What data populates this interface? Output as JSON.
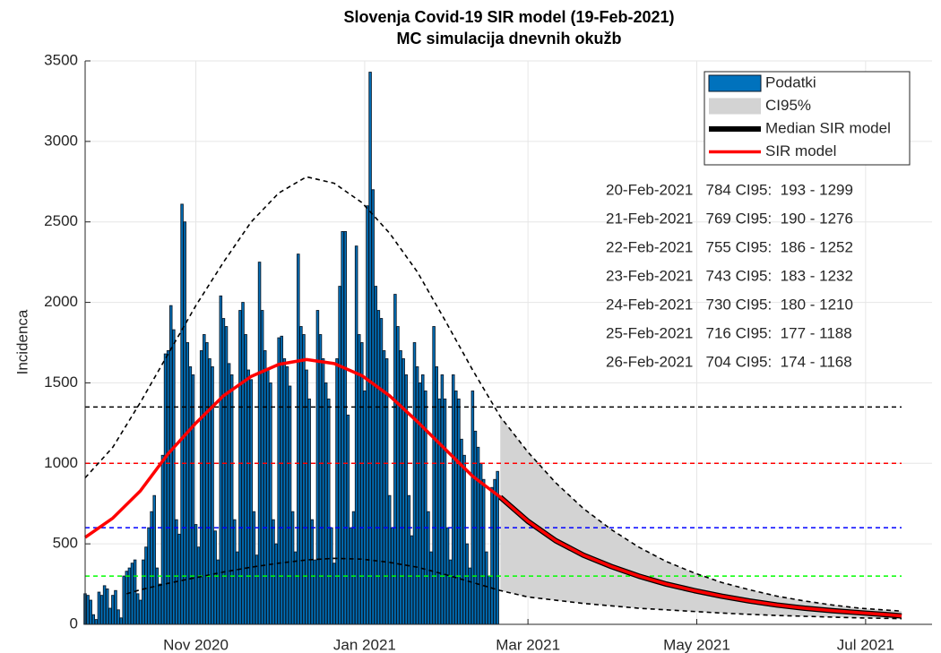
{
  "chart_data": {
    "type": "bar",
    "title": "Slovenja Covid-19 SIR model (19-Feb-2021)",
    "subtitle": "MC simulacija dnevnih okužb",
    "ylabel": "Incidenca",
    "xlim": [
      0,
      306
    ],
    "ylim": [
      0,
      3500
    ],
    "xticks": [
      {
        "value": 40,
        "label": "Nov 2020"
      },
      {
        "value": 101,
        "label": "Jan 2021"
      },
      {
        "value": 160,
        "label": "Mar 2021"
      },
      {
        "value": 221,
        "label": "May 2021"
      },
      {
        "value": 282,
        "label": "Jul 2021"
      }
    ],
    "yticks": [
      0,
      500,
      1000,
      1500,
      2000,
      2500,
      3000,
      3500
    ],
    "grid": true,
    "legend": "upper right",
    "series": [
      {
        "name": "Podatki",
        "kind": "bar",
        "color": "#0072bd",
        "values": [
          190,
          180,
          150,
          60,
          30,
          200,
          180,
          240,
          220,
          100,
          180,
          210,
          90,
          40,
          300,
          330,
          350,
          380,
          400,
          190,
          150,
          400,
          480,
          600,
          700,
          800,
          350,
          250,
          1050,
          1680,
          1700,
          1980,
          1830,
          650,
          560,
          2610,
          2500,
          1750,
          1600,
          1550,
          620,
          480,
          1700,
          1800,
          1750,
          1650,
          1600,
          580,
          400,
          2040,
          1900,
          1850,
          1620,
          1550,
          650,
          450,
          1950,
          2000,
          1800,
          1580,
          1520,
          700,
          430,
          2250,
          1950,
          1700,
          1580,
          1500,
          650,
          500,
          1780,
          1790,
          1650,
          1600,
          1480,
          700,
          450,
          2300,
          1850,
          1800,
          1580,
          1400,
          650,
          400,
          1950,
          1800,
          1650,
          1500,
          1400,
          600,
          380,
          1650,
          2100,
          2440,
          2440,
          1300,
          600,
          700,
          2350,
          1800,
          1750,
          1450,
          2600,
          3430,
          2700,
          2100,
          1950,
          1900,
          1700,
          1650,
          800,
          600,
          2050,
          1850,
          1700,
          1650,
          1550,
          800,
          550,
          1750,
          1600,
          1500,
          1550,
          1450,
          700,
          450,
          1850,
          1600,
          1400,
          1550,
          1400,
          600,
          400,
          1550,
          1450,
          1400,
          1150,
          1050,
          500,
          350,
          1450,
          1200,
          1100,
          1000,
          900,
          450,
          300,
          850,
          900,
          950
        ]
      },
      {
        "name": "CI95%",
        "kind": "band",
        "color": "#d3d3d3",
        "x": [
          150,
          160,
          170,
          180,
          190,
          200,
          210,
          220,
          230,
          240,
          250,
          260,
          270,
          280,
          290,
          295
        ],
        "upper": [
          1290,
          1070,
          880,
          720,
          590,
          480,
          390,
          320,
          260,
          215,
          175,
          145,
          120,
          100,
          88,
          82
        ],
        "lower": [
          210,
          170,
          150,
          130,
          115,
          100,
          90,
          80,
          70,
          62,
          55,
          50,
          45,
          40,
          37,
          35
        ]
      },
      {
        "name": "Median SIR model",
        "kind": "line",
        "color": "#000000",
        "width": 6,
        "x": [
          150,
          160,
          170,
          180,
          190,
          200,
          210,
          220,
          230,
          240,
          250,
          260,
          270,
          280,
          290,
          295
        ],
        "values": [
          790,
          640,
          520,
          430,
          360,
          300,
          250,
          210,
          175,
          145,
          120,
          100,
          85,
          72,
          60,
          52
        ]
      },
      {
        "name": "SIR model",
        "kind": "line",
        "color": "#ff0000",
        "width": 3.5,
        "x": [
          0,
          10,
          20,
          30,
          40,
          50,
          60,
          70,
          80,
          90,
          100,
          110,
          120,
          130,
          140,
          150,
          160,
          170,
          180,
          190,
          200,
          210,
          220,
          230,
          240,
          250,
          260,
          270,
          280,
          290,
          295
        ],
        "values": [
          540,
          660,
          830,
          1060,
          1250,
          1420,
          1540,
          1615,
          1645,
          1620,
          1545,
          1420,
          1260,
          1090,
          920,
          790,
          640,
          520,
          430,
          360,
          300,
          250,
          210,
          175,
          145,
          120,
          100,
          85,
          72,
          60,
          52
        ]
      }
    ],
    "dashed": [
      {
        "color": "#000000",
        "x": [
          0,
          10,
          20,
          30,
          40,
          50,
          60,
          70,
          80,
          90,
          100,
          110,
          120,
          130,
          140,
          150,
          160,
          170,
          180,
          190,
          200,
          210,
          220,
          230,
          240,
          250,
          260,
          270,
          280,
          290,
          295
        ],
        "values": [
          910,
          1100,
          1380,
          1680,
          1980,
          2250,
          2500,
          2680,
          2780,
          2740,
          2620,
          2430,
          2190,
          1890,
          1580,
          1290,
          1070,
          880,
          720,
          590,
          480,
          390,
          320,
          260,
          215,
          175,
          145,
          120,
          100,
          88,
          82
        ]
      },
      {
        "color": "#000000",
        "x": [
          15,
          20,
          30,
          40,
          50,
          60,
          70,
          80,
          90,
          100,
          110,
          120,
          130,
          140,
          150,
          160,
          170,
          180,
          190,
          200,
          210,
          220,
          230,
          240,
          250,
          260,
          270,
          280,
          290,
          295
        ],
        "values": [
          190,
          215,
          255,
          290,
          325,
          355,
          380,
          400,
          410,
          405,
          385,
          355,
          310,
          260,
          210,
          170,
          150,
          130,
          115,
          100,
          90,
          80,
          70,
          62,
          55,
          50,
          45,
          40,
          37,
          35
        ]
      }
    ],
    "reference_lines": [
      {
        "value": 1350,
        "color": "#000000"
      },
      {
        "value": 1000,
        "color": "#ff0000"
      },
      {
        "value": 600,
        "color": "#0000ff"
      },
      {
        "value": 300,
        "color": "#00ff00"
      }
    ],
    "annotations": [
      "20-Feb-2021   784 CI95:  193 - 1299",
      "21-Feb-2021   769 CI95:  190 - 1276",
      "22-Feb-2021   755 CI95:  186 - 1252",
      "23-Feb-2021   743 CI95:  183 - 1232",
      "24-Feb-2021   730 CI95:  180 - 1210",
      "25-Feb-2021   716 CI95:  177 - 1188",
      "26-Feb-2021   704 CI95:  174 - 1168"
    ]
  }
}
